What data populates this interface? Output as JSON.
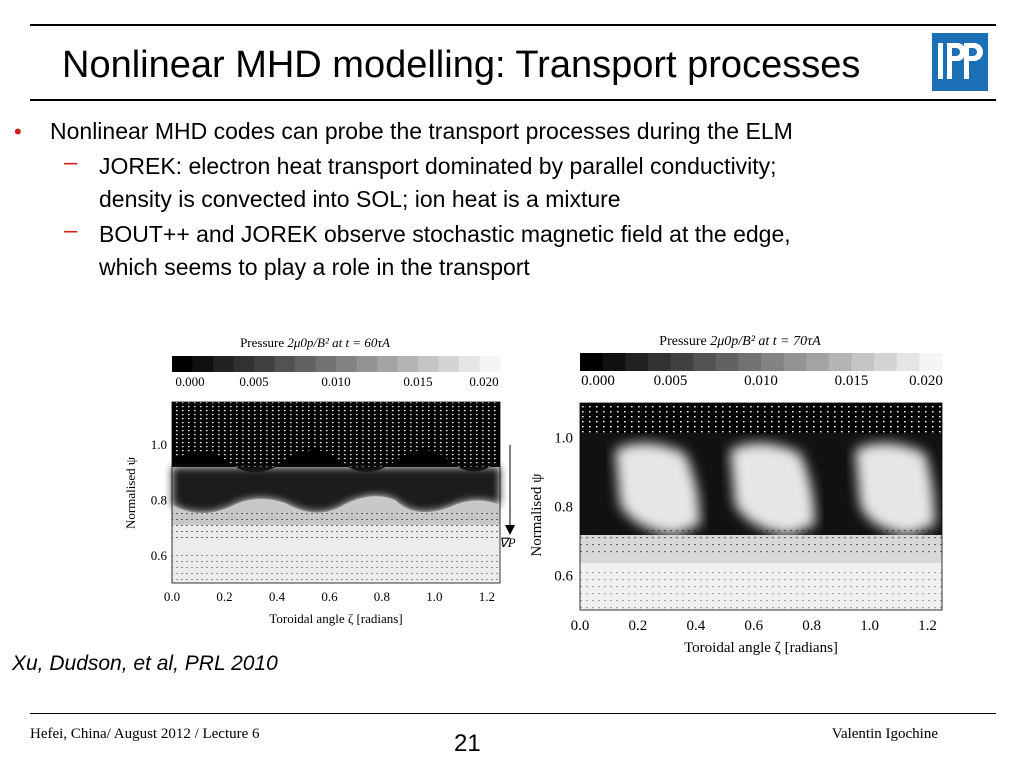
{
  "slide": {
    "title": "Nonlinear MHD modelling: Transport processes",
    "logo_text": "IPP",
    "bullets": [
      {
        "text": "Nonlinear MHD codes can probe the transport processes during the ELM",
        "sub": [
          {
            "lines": [
              "JOREK: electron heat transport dominated by parallel conductivity;",
              "density is convected into SOL; ion heat is a mixture"
            ]
          },
          {
            "lines": [
              "BOUT++ and JOREK observe stochastic magnetic field at the edge,",
              "which seems to play a role in the transport"
            ]
          }
        ]
      }
    ],
    "bullet_glyph": "•",
    "dash_glyph": "–",
    "citation": "Xu, Dudson, et al, PRL 2010",
    "footer": {
      "left": "Hefei, China/ August 2012 / Lecture 6",
      "page": "21",
      "right": "Valentin Igochine"
    }
  },
  "chart_data": [
    {
      "type": "heatmap",
      "title_prefix": "Pressure ",
      "title_math": "2μ0p/B² at t = 60τA",
      "colorbar_ticks": [
        "0.000",
        "0.005",
        "0.010",
        "0.015",
        "0.020"
      ],
      "colorbar_range": [
        0.0,
        0.02
      ],
      "colormap": "grayscale",
      "xlabel": "Toroidal angle ζ [radians]",
      "xticks": [
        "0.0",
        "0.2",
        "0.4",
        "0.6",
        "0.8",
        "1.0",
        "1.2"
      ],
      "ylabel": "Normalised ψ",
      "yticks": [
        "0.6",
        "0.8",
        "1.0"
      ],
      "annotation": "∇P"
    },
    {
      "type": "heatmap",
      "title_prefix": "Pressure ",
      "title_math": "2μ0p/B² at t = 70τA",
      "colorbar_ticks": [
        "0.000",
        "0.005",
        "0.010",
        "0.015",
        "0.020"
      ],
      "colorbar_range": [
        0.0,
        0.02
      ],
      "colormap": "grayscale",
      "xlabel": "Toroidal angle ζ [radians]",
      "xticks": [
        "0.0",
        "0.2",
        "0.4",
        "0.6",
        "0.8",
        "1.0",
        "1.2"
      ],
      "ylabel": "Normalised ψ",
      "yticks": [
        "0.6",
        "0.8",
        "1.0"
      ]
    }
  ]
}
